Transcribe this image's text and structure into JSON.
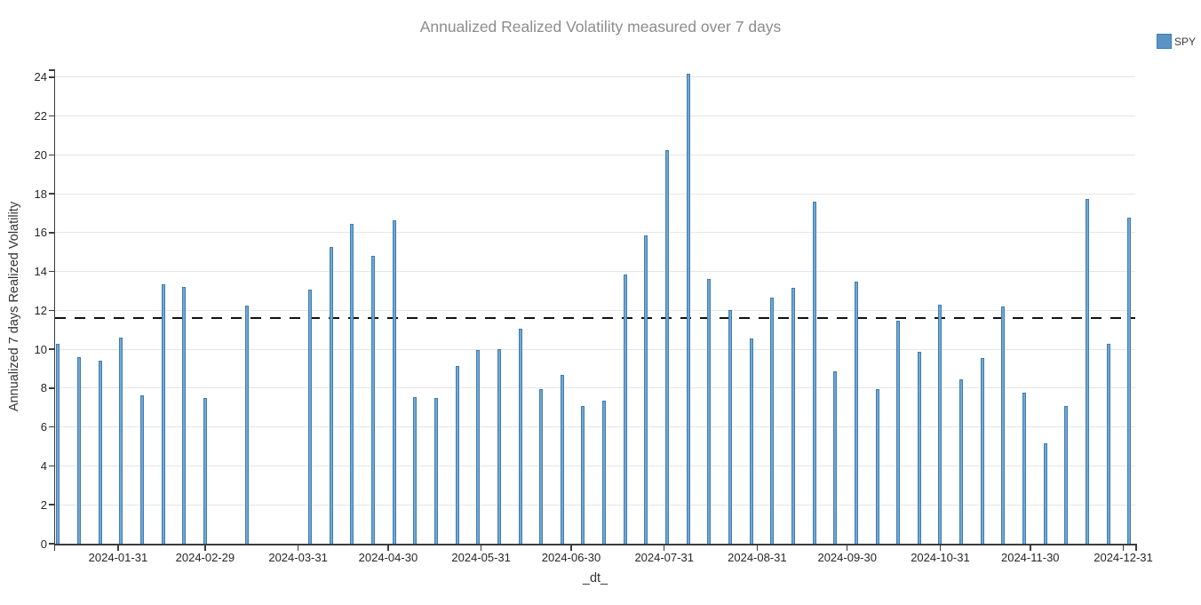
{
  "title": "Annualized Realized Volatility measured over 7 days",
  "legend": {
    "label": "SPY",
    "swatch_color": "#5b93c5"
  },
  "chart_data": {
    "type": "bar",
    "series_name": "SPY",
    "title": "Annualized Realized Volatility measured over 7 days",
    "xlabel": "_dt_",
    "ylabel": "Annualized 7 days Realized Volatility",
    "x": [
      "2024-01-11",
      "2024-01-18",
      "2024-01-25",
      "2024-02-01",
      "2024-02-08",
      "2024-02-15",
      "2024-02-22",
      "2024-02-29",
      "2024-03-14",
      "2024-04-04",
      "2024-04-11",
      "2024-04-18",
      "2024-04-25",
      "2024-05-02",
      "2024-05-09",
      "2024-05-16",
      "2024-05-23",
      "2024-05-30",
      "2024-06-06",
      "2024-06-13",
      "2024-06-20",
      "2024-06-27",
      "2024-07-04",
      "2024-07-11",
      "2024-07-18",
      "2024-07-25",
      "2024-08-01",
      "2024-08-08",
      "2024-08-15",
      "2024-08-22",
      "2024-08-29",
      "2024-09-05",
      "2024-09-12",
      "2024-09-19",
      "2024-09-26",
      "2024-10-03",
      "2024-10-10",
      "2024-10-17",
      "2024-10-24",
      "2024-10-31",
      "2024-11-07",
      "2024-11-14",
      "2024-11-21",
      "2024-11-28",
      "2024-12-05",
      "2024-12-12",
      "2024-12-19",
      "2024-12-26",
      "2025-01-02"
    ],
    "values": [
      10.3,
      9.6,
      9.4,
      10.6,
      7.65,
      13.35,
      13.2,
      7.5,
      12.25,
      13.05,
      15.25,
      16.45,
      14.8,
      16.65,
      7.55,
      7.5,
      9.15,
      9.95,
      10.0,
      11.05,
      7.95,
      8.7,
      7.1,
      7.35,
      13.85,
      15.85,
      20.25,
      24.15,
      13.6,
      12.0,
      10.55,
      12.65,
      13.15,
      17.6,
      8.85,
      13.5,
      7.95,
      11.45,
      9.85,
      12.3,
      8.45,
      9.55,
      12.2,
      7.75,
      5.15,
      7.1,
      17.75,
      10.3,
      16.75
    ],
    "mean_line": {
      "value": 11.6,
      "style": "dashed",
      "color": "#111111"
    },
    "ylim": [
      0,
      24.4
    ],
    "y_ticks": [
      0,
      2,
      4,
      6,
      8,
      10,
      12,
      14,
      16,
      18,
      20,
      22,
      24
    ],
    "x_range": [
      "2024-01-10",
      "2025-01-04"
    ],
    "x_tick_labels": [
      "2024-01-31",
      "2024-02-29",
      "2024-03-31",
      "2024-04-30",
      "2024-05-31",
      "2024-06-30",
      "2024-07-31",
      "2024-08-31",
      "2024-09-30",
      "2024-10-31",
      "2024-11-30",
      "2024-12-31"
    ],
    "grid": "horizontal",
    "legend_position": "top-right",
    "bar_fill": "#72a8d3",
    "bar_border": "#3d7cb2"
  }
}
